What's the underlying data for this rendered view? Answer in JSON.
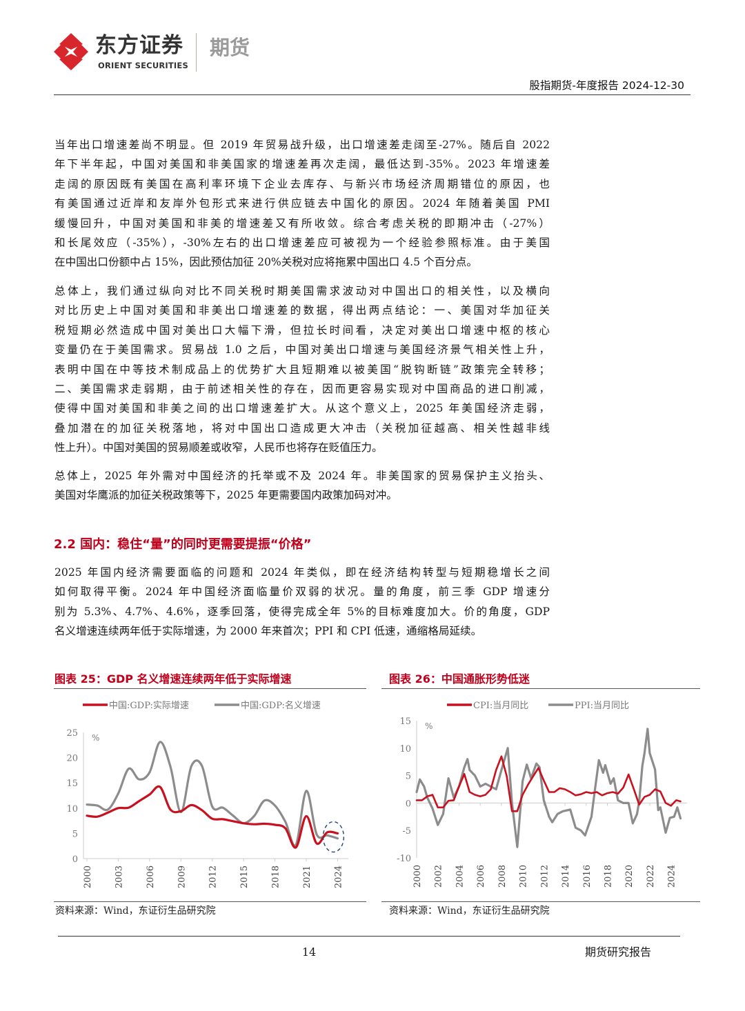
{
  "header": {
    "logo_cn": "东方证券",
    "logo_en": "ORIENT SECURITIES",
    "logo_sub": "期货",
    "report_title": "股指期货-年度报告",
    "date": "2024-12-30"
  },
  "paragraphs": [
    [
      "当年出口增速差尚不明显。但 2019 年贸易战升级，出口增速差走阔至-27%。随后自 2022",
      "年下半年起，中国对美国和非美国家的增速差再次走阔，最低达到-35%。2023 年增速差",
      "走阔的原因既有美国在高利率环境下企业去库存、与新兴市场经济周期错位的原因，也",
      "有美国通过近岸和友岸外包形式来进行供应链去中国化的原因。2024 年随着美国 PMI",
      "缓慢回升，中国对美国和非美的增速差又有所收敛。综合考虑关税的即期冲击（-27%）",
      "和长尾效应（-35%），-30%左右的出口增速差应可被视为一个经验参照标准。由于美国",
      "在中国出口份额中占 15%，因此预估加征 20%关税对应将拖累中国出口 4.5 个百分点。"
    ],
    [
      "总体上，我们通过纵向对比不同关税时期美国需求波动对中国出口的相关性，以及横向",
      "对比历史上中国对美国和非美出口增速差的数据，得出两点结论：一、美国对华加征关",
      "税短期必然造成中国对美出口大幅下滑，但拉长时间看，决定对美出口增速中枢的核心",
      "变量仍在于美国需求。贸易战 1.0 之后，中国对美出口增速与美国经济景气相关性上升，",
      "表明中国在中等技术制成品上的优势扩大且短期难以被美国“脱钩断链”政策完全转移；",
      "二、美国需求走弱期，由于前述相关性的存在，因而更容易实现对中国商品的进口削减，",
      "使得中国对美国和非美之间的出口增速差扩大。从这个意义上，2025 年美国经济走弱，",
      "叠加潜在的加征关税落地，将对中国出口造成更大冲击（关税加征越高、相关性越非线",
      "性上升）。中国对美国的贸易顺差或收窄，人民币也将存在贬值压力。"
    ],
    [
      "总体上，2025 年外需对中国经济的托举或不及 2024 年。非美国家的贸易保护主义抬头、",
      "美国对华鹰派的加征关税政策等下，2025 年更需要国内政策加码对冲。"
    ],
    [
      "2025 年国内经济需要面临的问题和 2024 年类似，即在经济结构转型与短期稳增长之间",
      "如何取得平衡。2024 年中国经济面临量价双弱的状况。量的角度，前三季 GDP 增速分",
      "别为 5.3%、4.7%、4.6%，逐季回落，使得完成全年 5%的目标难度加大。价的角度，GDP",
      "名义增速连续两年低于实际增速，为 2000 年来首次；PPI 和 CPI 低速，通缩格局延续。"
    ]
  ],
  "section_heading": "2.2 国内：稳住“量”的同时更需要提振“价格”",
  "figures": [
    {
      "caption": "图表 25：GDP 名义增速连续两年低于实际增速",
      "source": "资料来源：Wind，东证衍生品研究院"
    },
    {
      "caption": "图表 26：中国通胀形势低迷",
      "source": "资料来源：Wind，东证衍生品研究院"
    }
  ],
  "chart_data": [
    {
      "type": "line",
      "ylabel": "%",
      "ylim": [
        0,
        25
      ],
      "yticks": [
        0,
        5,
        10,
        15,
        20,
        25
      ],
      "xlim": [
        2000,
        2024.5
      ],
      "xticks": [
        2000,
        2003,
        2006,
        2009,
        2012,
        2015,
        2018,
        2021,
        2024
      ],
      "legend": "top",
      "grid": false,
      "annotation": "dashed ellipse highlighting 2023-2024",
      "x": [
        2000,
        2001,
        2002,
        2003,
        2004,
        2005,
        2006,
        2007,
        2008,
        2009,
        2010,
        2011,
        2012,
        2013,
        2014,
        2015,
        2016,
        2017,
        2018,
        2019,
        2020,
        2021,
        2022,
        2023,
        2024
      ],
      "series": [
        {
          "name": "中国:GDP:实际增速",
          "color": "#c8101e",
          "values": [
            8.5,
            8.3,
            9.1,
            10.0,
            10.1,
            11.4,
            12.7,
            14.2,
            9.7,
            9.4,
            10.6,
            9.6,
            7.9,
            7.8,
            7.4,
            7.0,
            6.8,
            6.9,
            6.7,
            6.0,
            2.2,
            8.4,
            3.0,
            5.2,
            5.0
          ]
        },
        {
          "name": "中国:GDP:名义增速",
          "color": "#8c8c8c",
          "values": [
            10.7,
            10.5,
            9.7,
            12.9,
            17.8,
            15.7,
            17.1,
            23.1,
            18.2,
            9.2,
            18.3,
            18.4,
            10.3,
            10.1,
            8.5,
            7.0,
            8.4,
            11.5,
            10.5,
            7.3,
            2.7,
            13.4,
            4.8,
            4.6,
            4.0
          ]
        }
      ]
    },
    {
      "type": "line",
      "ylabel": "%",
      "ylim": [
        -10,
        15
      ],
      "yticks": [
        -10,
        -5,
        0,
        5,
        10,
        15
      ],
      "xlim": [
        2000,
        2025
      ],
      "xticks": [
        2000,
        2002,
        2004,
        2006,
        2008,
        2010,
        2012,
        2014,
        2016,
        2018,
        2020,
        2022,
        2024
      ],
      "legend": "top",
      "grid": false,
      "series": [
        {
          "name": "CPI:当月同比",
          "color": "#c8101e",
          "x": [
            2000,
            2000.5,
            2001,
            2001.5,
            2002,
            2002.5,
            2003,
            2003.5,
            2004,
            2004.5,
            2005,
            2005.5,
            2006,
            2006.5,
            2007,
            2007.5,
            2008,
            2008.5,
            2009,
            2009.5,
            2010,
            2010.5,
            2011,
            2011.5,
            2012,
            2012.5,
            2013,
            2013.5,
            2014,
            2014.5,
            2015,
            2015.5,
            2016,
            2016.5,
            2017,
            2017.5,
            2018,
            2018.5,
            2019,
            2019.5,
            2020,
            2020.5,
            2021,
            2021.5,
            2022,
            2022.5,
            2023,
            2023.5,
            2024,
            2024.5,
            2024.9
          ],
          "values": [
            0.5,
            0.5,
            1.2,
            1.5,
            -0.8,
            -0.8,
            0.4,
            0.5,
            3.0,
            5.3,
            2.0,
            1.5,
            1.2,
            1.5,
            2.5,
            6.0,
            8.5,
            4.9,
            -1.5,
            -1.5,
            1.5,
            3.3,
            4.9,
            6.4,
            4.1,
            2.0,
            2.0,
            2.7,
            2.5,
            2.0,
            1.4,
            1.6,
            2.0,
            1.8,
            2.0,
            1.4,
            1.8,
            2.0,
            1.7,
            2.8,
            5.2,
            2.5,
            -0.3,
            1.1,
            1.5,
            2.5,
            2.1,
            0.0,
            -0.5,
            0.5,
            0.3
          ]
        },
        {
          "name": "PPI:当月同比",
          "color": "#8c8c8c",
          "x": [
            2000,
            2000.3,
            2000.7,
            2001,
            2001.5,
            2002,
            2002.5,
            2003,
            2003.5,
            2004,
            2004.5,
            2004.8,
            2005,
            2005.5,
            2006,
            2006.5,
            2007,
            2007.5,
            2008,
            2008.6,
            2009,
            2009.5,
            2010,
            2010.4,
            2010.8,
            2011.3,
            2011.6,
            2012,
            2012.5,
            2012.8,
            2013.3,
            2013.8,
            2014.5,
            2015,
            2015.5,
            2015.9,
            2016.5,
            2016.9,
            2017.2,
            2017.6,
            2017.8,
            2018.3,
            2018.6,
            2019,
            2019.5,
            2020,
            2020.4,
            2020.8,
            2021,
            2021.3,
            2021.5,
            2021.8,
            2022,
            2022.5,
            2022.8,
            2023,
            2023.5,
            2023.9,
            2024.3,
            2024.6,
            2024.9
          ],
          "values": [
            2.0,
            4.3,
            3.0,
            1.0,
            -1.0,
            -4.0,
            -2.0,
            4.5,
            1.0,
            3.0,
            6.5,
            8.0,
            6.0,
            5.0,
            3.0,
            3.5,
            3.0,
            2.5,
            6.0,
            10.0,
            0.0,
            -8.0,
            4.0,
            7.0,
            4.5,
            7.2,
            6.5,
            0.5,
            -2.5,
            -3.5,
            -2.0,
            -1.5,
            -1.2,
            -4.5,
            -5.0,
            -5.9,
            -2.5,
            3.5,
            7.8,
            5.5,
            6.9,
            3.5,
            4.5,
            0.5,
            0.0,
            0.0,
            -3.7,
            -2.0,
            0.3,
            6.8,
            9.0,
            13.5,
            9.1,
            6.1,
            -1.3,
            -0.8,
            -5.4,
            -2.7,
            -2.5,
            -0.8,
            -2.8
          ]
        }
      ]
    }
  ],
  "footer": {
    "page": "14",
    "label": "期货研究报告"
  }
}
